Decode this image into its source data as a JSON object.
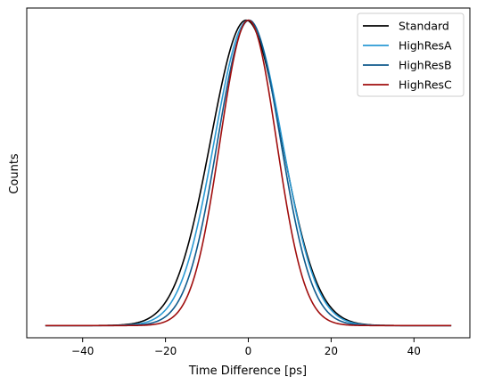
{
  "chart_data": {
    "type": "line",
    "title": "",
    "xlabel": "Time Difference [ps]",
    "ylabel": "Counts",
    "xlim": [
      -53.5,
      53.5
    ],
    "ylim": [
      -0.04,
      1.04
    ],
    "x_ticks": [
      -40,
      -20,
      0,
      20,
      40
    ],
    "x_tick_labels": [
      "−40",
      "−20",
      "0",
      "20",
      "40"
    ],
    "y_ticks_shown": false,
    "grid": false,
    "legend_position": "top-right",
    "series": [
      {
        "name": "Standard",
        "color": "#000000",
        "shape": "gaussian",
        "mu": -0.5,
        "sigma": 8.6,
        "x_range": [
          -49,
          49
        ]
      },
      {
        "name": "HighResA",
        "color": "#2a9ad4",
        "shape": "gaussian",
        "mu": 0.0,
        "sigma": 8.2,
        "x_range": [
          -49,
          49
        ]
      },
      {
        "name": "HighResB",
        "color": "#0f5a8c",
        "shape": "gaussian",
        "mu": 0.2,
        "sigma": 7.6,
        "x_range": [
          -49,
          49
        ]
      },
      {
        "name": "HighResC",
        "color": "#a00d0d",
        "shape": "gaussian",
        "mu": 0.0,
        "sigma": 6.8,
        "x_range": [
          -49,
          49
        ]
      }
    ]
  }
}
